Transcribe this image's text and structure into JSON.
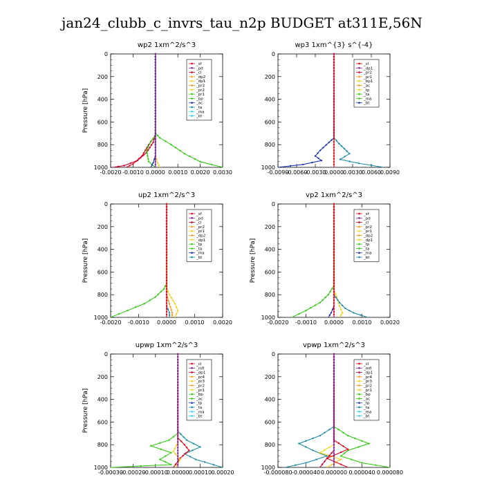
{
  "figure_title": "jan24_clubb_c_invrs_tau_n2p  BUDGET at311E,56N",
  "colors": {
    "red": "#e4001a",
    "purple": "#7f1f9a",
    "crimson": "#c8002e",
    "orange": "#f39a1a",
    "yellow": "#f1d21a",
    "green": "#35c914",
    "blue": "#1c34b4",
    "teal": "#1b8aa0",
    "cyan": "#35d3e6",
    "darkred": "#a0001a"
  },
  "chart_data": [
    {
      "type": "line",
      "title": "wp2  1xm^2/s^3",
      "ylabel": "Pressure  [hPa]",
      "xlim": [
        -0.002,
        0.003
      ],
      "ylim": [
        1000,
        0
      ],
      "y_reversed": true,
      "xticks": [
        "-0.0020",
        "-0.0010",
        "0.0000",
        "0.0010",
        "0.0020",
        "0.0030"
      ],
      "yticks": [
        "0",
        "200",
        "400",
        "600",
        "800",
        "1000"
      ],
      "legend": [
        "_sf",
        "_pd",
        "_cl",
        "_dp2",
        "_dp1",
        "_pr3",
        "_pr2",
        "_pr1",
        "_bp",
        "_ac",
        "_ta",
        "_ma",
        "_bt"
      ],
      "series": [
        {
          "name": "_dp1",
          "color": "crimson",
          "points": [
            [
              0,
              0
            ],
            [
              0,
              700
            ],
            [
              -0.0001,
              780
            ],
            [
              -0.0004,
              870
            ],
            [
              -0.0008,
              940
            ],
            [
              -0.0014,
              985
            ],
            [
              -0.0019,
              1000
            ]
          ]
        },
        {
          "name": "_pr1",
          "color": "red",
          "points": [
            [
              0,
              0
            ],
            [
              0,
              720
            ],
            [
              -0.0003,
              800
            ],
            [
              -0.0006,
              900
            ],
            [
              -0.001,
              970
            ],
            [
              -0.0013,
              1000
            ]
          ]
        },
        {
          "name": "_ac",
          "color": "green",
          "points": [
            [
              0,
              0
            ],
            [
              0,
              700
            ],
            [
              0.0002,
              740
            ],
            [
              0.0007,
              800
            ],
            [
              0.0013,
              880
            ],
            [
              0.002,
              950
            ],
            [
              0.003,
              1000
            ]
          ]
        },
        {
          "name": "_bp",
          "color": "green",
          "points": [
            [
              0,
              0
            ],
            [
              0,
              720
            ],
            [
              -0.0002,
              770
            ],
            [
              -0.0004,
              850
            ],
            [
              -0.0003,
              950
            ],
            [
              0,
              1000
            ]
          ]
        },
        {
          "name": "_pr2",
          "color": "yellow",
          "points": [
            [
              0,
              0
            ],
            [
              0,
              900
            ],
            [
              0.0001,
              960
            ],
            [
              0.0002,
              1000
            ]
          ]
        },
        {
          "name": "_ta",
          "color": "blue",
          "points": [
            [
              0,
              0
            ],
            [
              0,
              900
            ],
            [
              -0.0001,
              960
            ],
            [
              -0.0002,
              1000
            ]
          ]
        },
        {
          "name": "_pd",
          "color": "purple",
          "points": [
            [
              0,
              0
            ],
            [
              0,
              1000
            ]
          ]
        }
      ]
    },
    {
      "type": "line",
      "title": "wp3  1xm^{3} s^{-4}",
      "ylabel": "",
      "xlim": [
        -0.009,
        0.009
      ],
      "ylim": [
        1000,
        0
      ],
      "y_reversed": true,
      "xticks": [
        "-0.0090",
        "-0.0060",
        "-0.0030",
        "0.0000",
        "0.0030",
        "0.0060",
        "0.0090"
      ],
      "yticks": [
        "0",
        "200",
        "400",
        "600",
        "800",
        "1000"
      ],
      "legend": [
        "_cl",
        "_dp1",
        "_pr2",
        "_pr1",
        "_bp1",
        "_ac",
        "_tp",
        "_ta",
        "_ma",
        "_bt"
      ],
      "series": [
        {
          "name": "_tp",
          "color": "blue",
          "points": [
            [
              0,
              0
            ],
            [
              0,
              740
            ],
            [
              -0.0008,
              780
            ],
            [
              -0.0022,
              850
            ],
            [
              -0.003,
              900
            ],
            [
              -0.002,
              940
            ],
            [
              -0.005,
              975
            ],
            [
              -0.009,
              1000
            ]
          ]
        },
        {
          "name": "_ta",
          "color": "teal",
          "points": [
            [
              0,
              0
            ],
            [
              0,
              740
            ],
            [
              0.0008,
              790
            ],
            [
              0.0025,
              880
            ],
            [
              0.001,
              930
            ],
            [
              0.004,
              965
            ],
            [
              0.008,
              1000
            ]
          ]
        },
        {
          "name": "_cl",
          "color": "red",
          "points": [
            [
              0,
              0
            ],
            [
              0,
              1000
            ]
          ]
        }
      ]
    },
    {
      "type": "line",
      "title": "up2  1xm^2/s^3",
      "ylabel": "Pressure  [hPa]",
      "xlim": [
        -0.002,
        0.002
      ],
      "ylim": [
        1000,
        0
      ],
      "y_reversed": true,
      "xticks": [
        "-0.0020",
        "-0.0010",
        "0.0000",
        "0.0010",
        "0.0020"
      ],
      "yticks": [
        "0",
        "200",
        "400",
        "600",
        "800",
        "1000"
      ],
      "legend": [
        "_sf",
        "_pd",
        "_cl",
        "_pr2",
        "_pr1",
        "_dp2",
        "_dp1",
        "_tp",
        "_ta",
        "_ma",
        "_bt"
      ],
      "series": [
        {
          "name": "_dp2",
          "color": "green",
          "points": [
            [
              0,
              0
            ],
            [
              0,
              700
            ],
            [
              -0.0001,
              750
            ],
            [
              -0.0004,
              820
            ],
            [
              -0.0008,
              880
            ],
            [
              -0.0014,
              940
            ],
            [
              -0.002,
              1000
            ]
          ]
        },
        {
          "name": "_pr2",
          "color": "yellow",
          "points": [
            [
              0,
              0
            ],
            [
              0,
              740
            ],
            [
              0.0001,
              800
            ],
            [
              0.0003,
              880
            ],
            [
              0.0004,
              940
            ],
            [
              0.0003,
              1000
            ]
          ]
        },
        {
          "name": "_pr1",
          "color": "orange",
          "points": [
            [
              0,
              0
            ],
            [
              0,
              800
            ],
            [
              0.0001,
              880
            ],
            [
              0.0002,
              960
            ],
            [
              0.0002,
              1000
            ]
          ]
        },
        {
          "name": "_ta",
          "color": "teal",
          "points": [
            [
              0,
              0
            ],
            [
              0,
              900
            ],
            [
              0.0001,
              960
            ],
            [
              0.0001,
              1000
            ]
          ]
        },
        {
          "name": "_cl",
          "color": "red",
          "points": [
            [
              0,
              0
            ],
            [
              0,
              1000
            ]
          ]
        }
      ]
    },
    {
      "type": "line",
      "title": "vp2  1xm^2/s^3",
      "ylabel": "Pressure  [hPa]",
      "xlim": [
        -0.002,
        0.002
      ],
      "ylim": [
        1000,
        0
      ],
      "y_reversed": true,
      "xticks": [
        "-0.0020",
        "-0.0010",
        "0.0000",
        "0.0010",
        "0.0020"
      ],
      "yticks": [
        "0",
        "200",
        "400",
        "600",
        "800",
        "1000"
      ],
      "legend": [
        "_sf",
        "_pd",
        "_cl",
        "_pr2",
        "_pr1",
        "_dp2",
        "_dp1",
        "_tp",
        "_ta",
        "_ma",
        "_bt"
      ],
      "series": [
        {
          "name": "_dp2",
          "color": "green",
          "points": [
            [
              0,
              0
            ],
            [
              0,
              720
            ],
            [
              -0.0002,
              800
            ],
            [
              -0.0005,
              870
            ],
            [
              -0.001,
              940
            ],
            [
              -0.0015,
              1000
            ]
          ]
        },
        {
          "name": "_pr2",
          "color": "yellow",
          "points": [
            [
              0,
              0
            ],
            [
              0,
              760
            ],
            [
              0.0001,
              820
            ],
            [
              0.0002,
              900
            ],
            [
              0.0003,
              960
            ],
            [
              0.0002,
              1000
            ]
          ]
        },
        {
          "name": "_ta",
          "color": "teal",
          "points": [
            [
              0,
              0
            ],
            [
              0,
              800
            ],
            [
              0.0002,
              870
            ],
            [
              0.0004,
              920
            ],
            [
              0.0007,
              960
            ],
            [
              0.0012,
              1000
            ]
          ]
        },
        {
          "name": "_tp",
          "color": "blue",
          "points": [
            [
              0,
              0
            ],
            [
              0,
              900
            ],
            [
              -0.0001,
              960
            ],
            [
              -0.0002,
              1000
            ]
          ]
        },
        {
          "name": "_cl",
          "color": "red",
          "points": [
            [
              0,
              0
            ],
            [
              0,
              1000
            ]
          ]
        }
      ]
    },
    {
      "type": "line",
      "title": "upwp  1xm^2/s^3",
      "ylabel": "Pressure  [hPa]",
      "xlim": [
        -0.0003,
        0.0002
      ],
      "ylim": [
        1000,
        0
      ],
      "y_reversed": true,
      "xticks": [
        "-0.00030",
        "-0.00020",
        "-0.00010",
        "0.00000",
        "0.00010",
        "0.00020"
      ],
      "yticks": [
        "0",
        "200",
        "400",
        "600",
        "800",
        "1000"
      ],
      "legend": [
        "_cl",
        "_mfl",
        "_dp1",
        "_pr4",
        "_pr3",
        "_pr2",
        "_pr1",
        "_bp",
        "_ac",
        "_tp",
        "_ta",
        "_ma",
        "_bt"
      ],
      "series": [
        {
          "name": "_ac",
          "color": "green",
          "points": [
            [
              0,
              0
            ],
            [
              0,
              700
            ],
            [
              -4e-05,
              760
            ],
            [
              -0.00012,
              810
            ],
            [
              -3e-05,
              870
            ],
            [
              -8e-05,
              930
            ],
            [
              -3e-05,
              975
            ],
            [
              -0.0003,
              1000
            ]
          ]
        },
        {
          "name": "_ta",
          "color": "teal",
          "points": [
            [
              0,
              0
            ],
            [
              0,
              680
            ],
            [
              4e-05,
              760
            ],
            [
              0.0001,
              820
            ],
            [
              3e-05,
              880
            ],
            [
              8e-05,
              930
            ],
            [
              0.0002,
              1000
            ]
          ]
        },
        {
          "name": "_pr1",
          "color": "red",
          "points": [
            [
              0,
              0
            ],
            [
              0,
              740
            ],
            [
              3e-05,
              800
            ],
            [
              5e-05,
              850
            ],
            [
              1e-05,
              920
            ],
            [
              -2e-05,
              1000
            ]
          ]
        },
        {
          "name": "_pr2",
          "color": "yellow",
          "points": [
            [
              0,
              0
            ],
            [
              0,
              780
            ],
            [
              -2e-05,
              860
            ],
            [
              1e-05,
              930
            ],
            [
              -1e-05,
              1000
            ]
          ]
        },
        {
          "name": "_cl",
          "color": "purple",
          "points": [
            [
              0,
              0
            ],
            [
              0,
              1000
            ]
          ]
        }
      ]
    },
    {
      "type": "line",
      "title": "vpwp  1xm^2/s^3",
      "ylabel": "",
      "xlim": [
        -8e-05,
        8e-05
      ],
      "ylim": [
        1000,
        0
      ],
      "y_reversed": true,
      "xticks": [
        "-0.000080",
        "-0.000040",
        "0.000000",
        "0.000040",
        "0.000080"
      ],
      "yticks": [
        "0",
        "200",
        "400",
        "600",
        "800",
        "1000"
      ],
      "legend": [
        "_cl",
        "_mfl",
        "_dp1",
        "_pr4",
        "_pr3",
        "_pr2",
        "_pr1",
        "_bp",
        "_ac",
        "_tp",
        "_ta",
        "_ma",
        "_bt"
      ],
      "series": [
        {
          "name": "_ta",
          "color": "teal",
          "points": [
            [
              0,
              0
            ],
            [
              0,
              640
            ],
            [
              -2e-05,
              720
            ],
            [
              -5e-05,
              790
            ],
            [
              -3e-05,
              850
            ],
            [
              -1e-05,
              900
            ],
            [
              -4e-05,
              960
            ],
            [
              -7e-05,
              1000
            ]
          ]
        },
        {
          "name": "_ac",
          "color": "green",
          "points": [
            [
              0,
              0
            ],
            [
              0,
              640
            ],
            [
              2e-05,
              720
            ],
            [
              5e-05,
              790
            ],
            [
              2e-05,
              850
            ],
            [
              1e-05,
              900
            ],
            [
              4e-05,
              960
            ],
            [
              8e-05,
              1000
            ]
          ]
        },
        {
          "name": "_pr2",
          "color": "yellow",
          "points": [
            [
              0,
              0
            ],
            [
              0,
              800
            ],
            [
              -2e-05,
              870
            ],
            [
              1e-05,
              930
            ],
            [
              -1e-05,
              1000
            ]
          ]
        },
        {
          "name": "_pr1",
          "color": "red",
          "points": [
            [
              0,
              0
            ],
            [
              0,
              760
            ],
            [
              2e-05,
              840
            ],
            [
              -1e-05,
              920
            ],
            [
              2e-05,
              1000
            ]
          ]
        },
        {
          "name": "_dp1",
          "color": "crimson",
          "points": [
            [
              0,
              0
            ],
            [
              0,
              850
            ],
            [
              -1e-05,
              920
            ],
            [
              -2e-05,
              1000
            ]
          ]
        },
        {
          "name": "_cl",
          "color": "purple",
          "points": [
            [
              0,
              0
            ],
            [
              0,
              1000
            ]
          ]
        }
      ]
    }
  ]
}
